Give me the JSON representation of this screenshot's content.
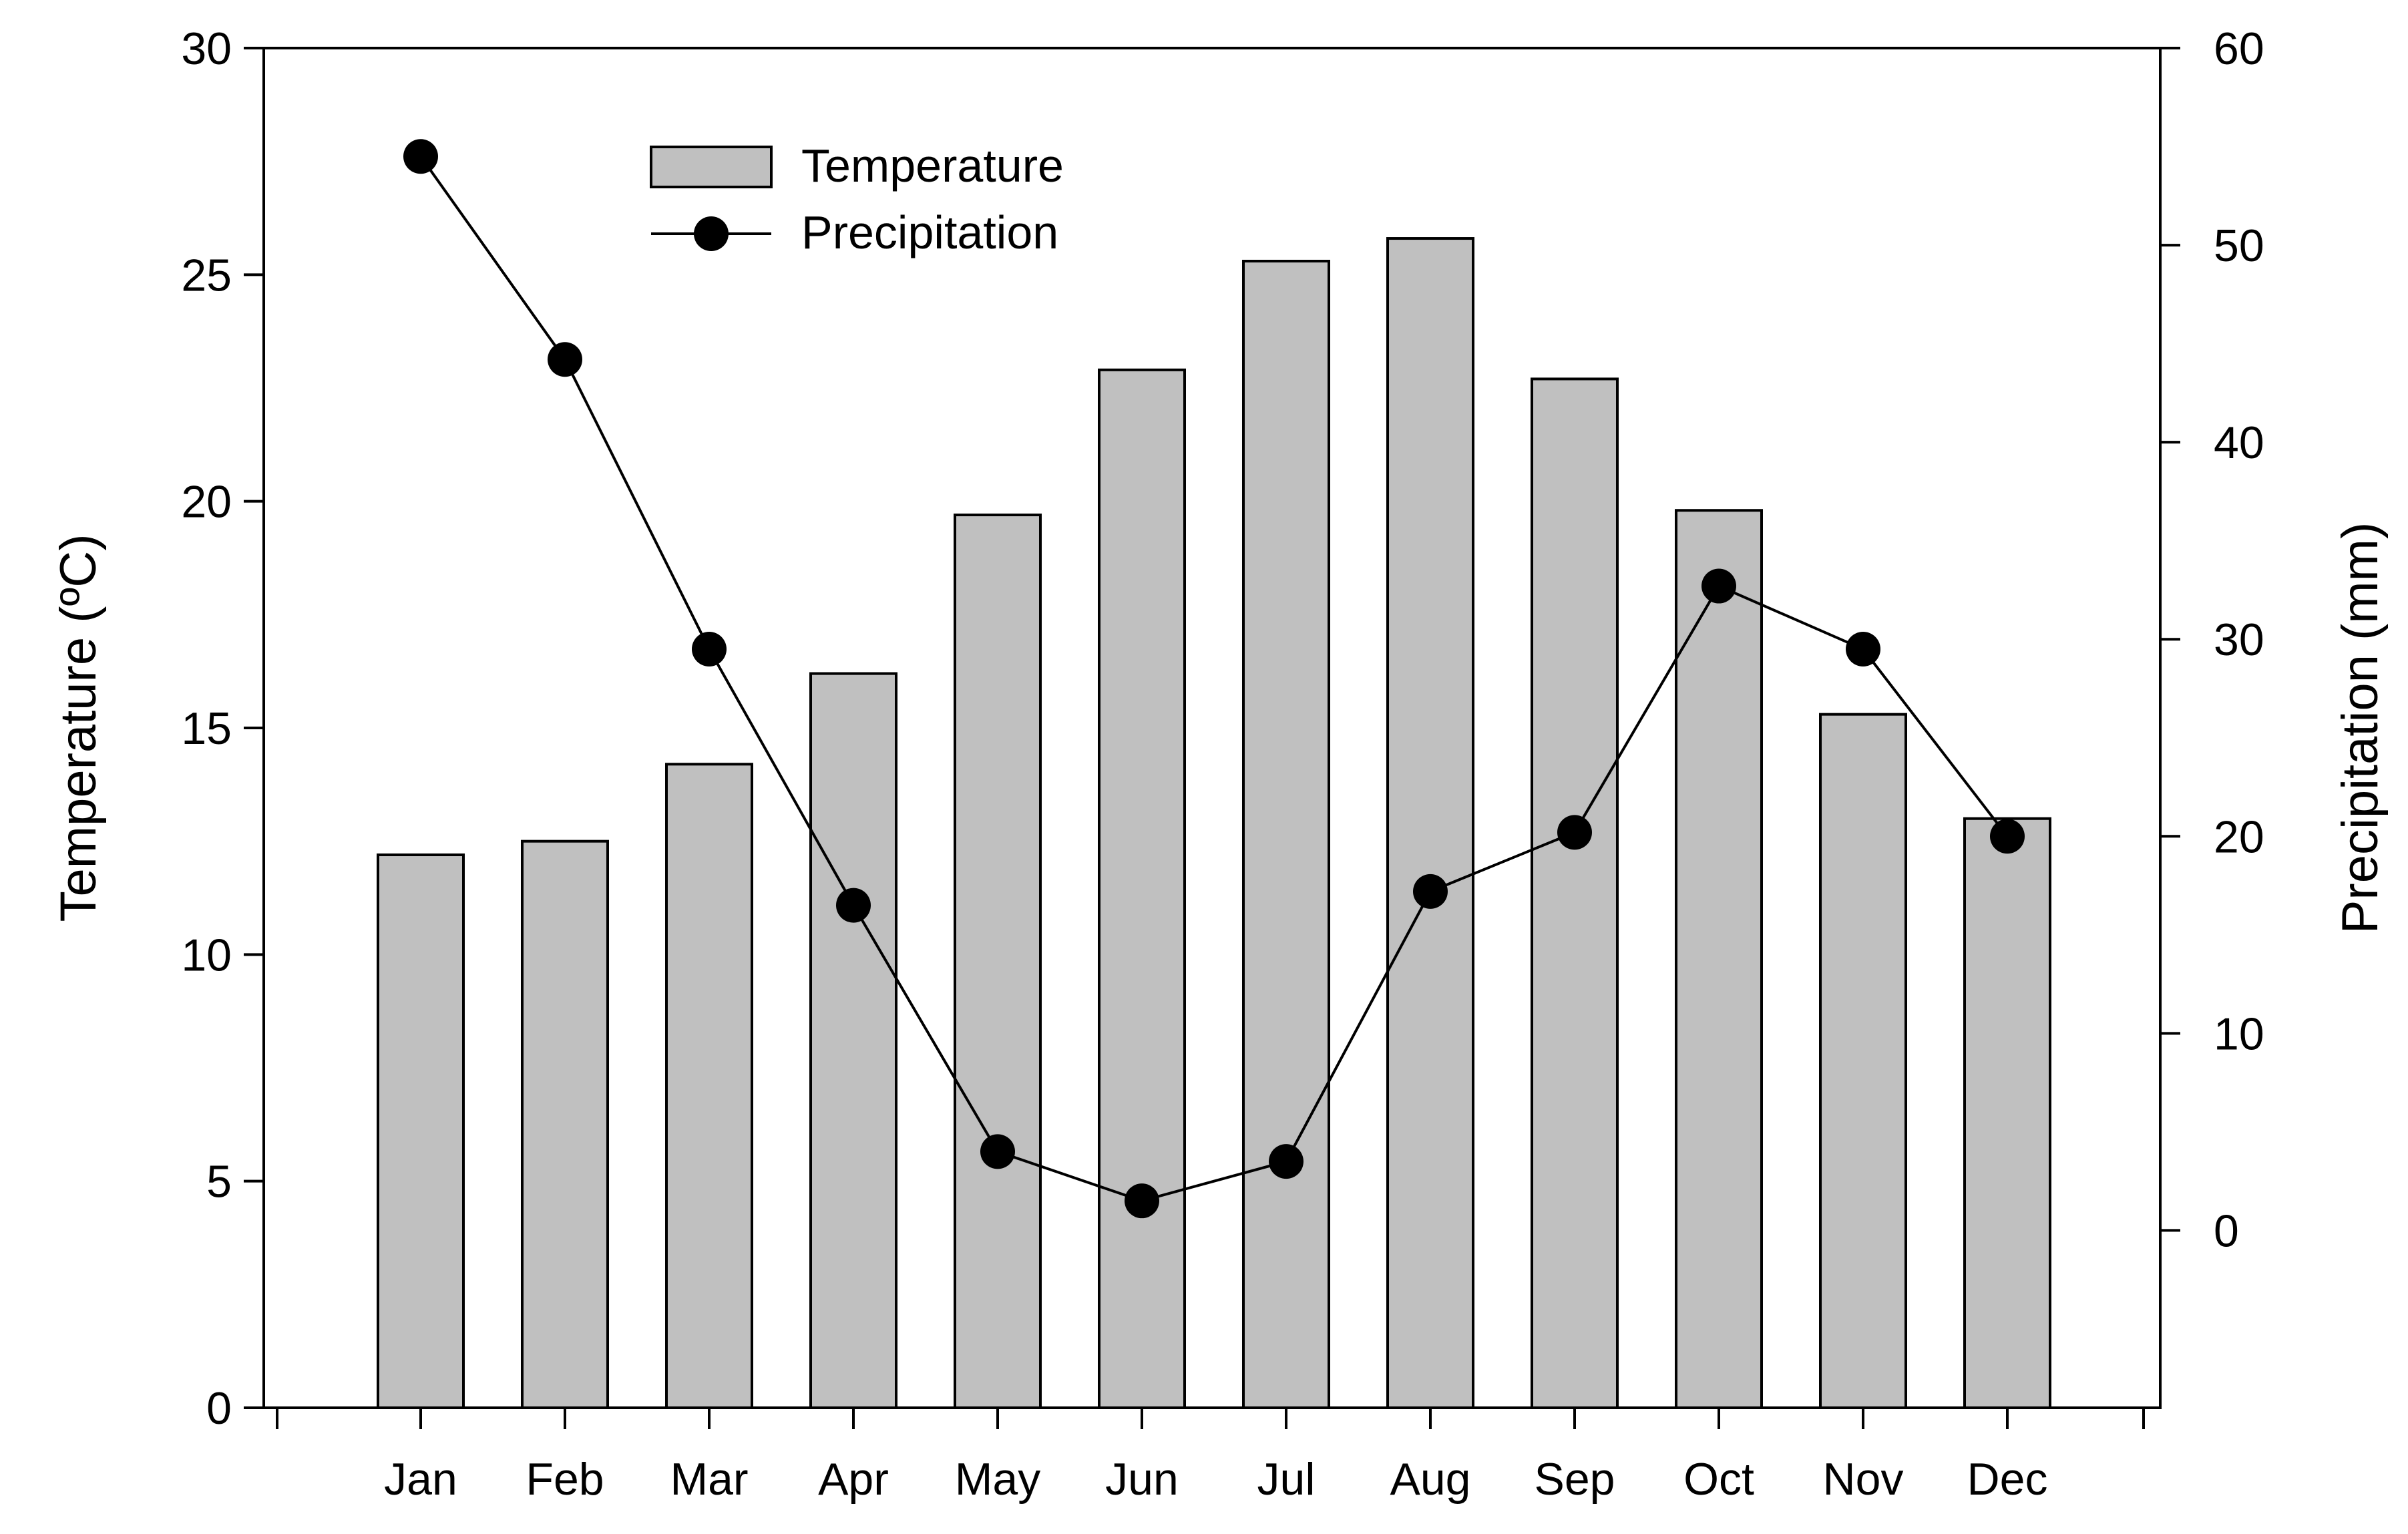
{
  "chart_data": {
    "type": "bar+line",
    "categories": [
      "Jan",
      "Feb",
      "Mar",
      "Apr",
      "May",
      "Jun",
      "Jul",
      "Aug",
      "Sep",
      "Oct",
      "Nov",
      "Dec"
    ],
    "series": [
      {
        "name": "Temperature",
        "type": "bar",
        "axis": "left",
        "values": [
          12.2,
          12.5,
          14.2,
          16.2,
          19.7,
          22.9,
          25.3,
          25.8,
          22.7,
          19.8,
          15.3,
          13.0
        ]
      },
      {
        "name": "Precipitation",
        "type": "line",
        "axis": "right",
        "values": [
          54.5,
          44.2,
          29.5,
          16.5,
          4.0,
          1.5,
          3.5,
          17.2,
          20.2,
          32.7,
          29.5,
          20.0
        ]
      }
    ],
    "ylabel": "Temperature (ºC)",
    "y2label": "Precipitation (mm)",
    "ylim": [
      0,
      30
    ],
    "y2lim": [
      -9,
      60
    ],
    "yticks": [
      "0",
      "5",
      "10",
      "15",
      "20",
      "25",
      "30"
    ],
    "y2ticks": [
      "0",
      "10",
      "20",
      "30",
      "40",
      "50",
      "60"
    ],
    "legend": {
      "position": "top-left",
      "entries": [
        "Temperature",
        "Precipitation"
      ]
    },
    "colors": {
      "bar_fill": "#c0c0c0",
      "bar_stroke": "#000000",
      "line": "#000000",
      "marker": "#000000"
    }
  }
}
